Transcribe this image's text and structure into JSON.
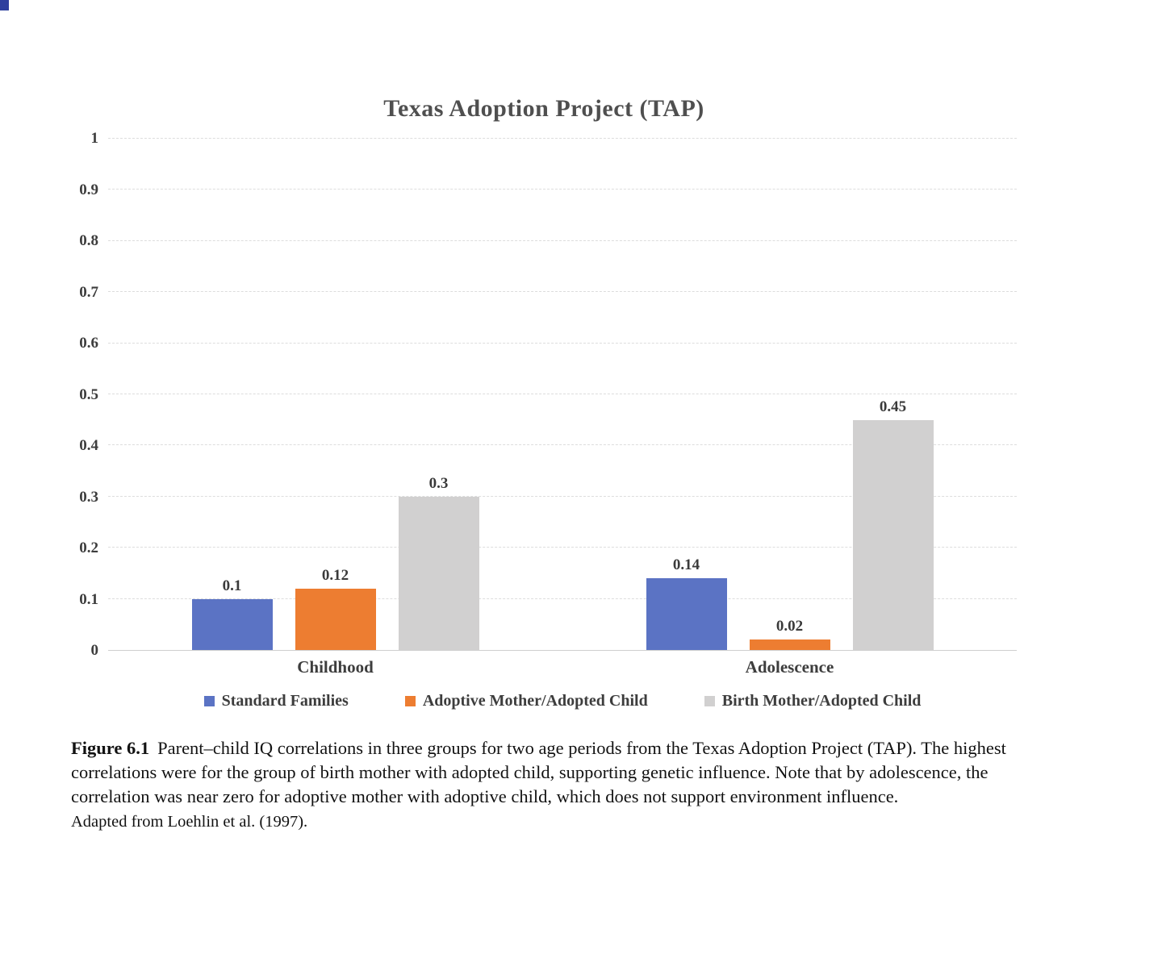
{
  "chart_data": {
    "type": "bar",
    "title": "Texas Adoption Project (TAP)",
    "categories": [
      "Childhood",
      "Adolescence"
    ],
    "series": [
      {
        "name": "Standard Families",
        "color": "#5b73c4",
        "values": [
          0.1,
          0.14
        ]
      },
      {
        "name": "Adoptive Mother/Adopted Child",
        "color": "#ed7d31",
        "values": [
          0.12,
          0.02
        ]
      },
      {
        "name": "Birth Mother/Adopted Child",
        "color": "#d1d0d0",
        "values": [
          0.3,
          0.45
        ]
      }
    ],
    "xlabel": "",
    "ylabel": "",
    "ylim": [
      0,
      1
    ],
    "ytick_step": 0.1,
    "grid": true,
    "legend_position": "bottom"
  },
  "caption": {
    "figure_label": "Figure 6.1",
    "text": "Parent–child IQ correlations in three groups for two age periods from the Texas Adoption Project (TAP). The highest correlations were for the group of birth mother with adopted child, supporting genetic influence. Note that by adolescence, the correlation was near zero for adoptive mother with adoptive child, which does not support environment influence.",
    "source": "Adapted from Loehlin et al. (1997)."
  }
}
